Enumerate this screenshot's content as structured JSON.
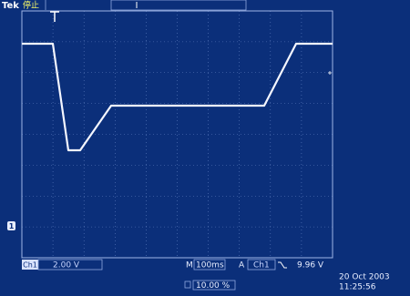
{
  "header": {
    "brand": "Tek",
    "status": "停止"
  },
  "markers": {
    "ground": "1"
  },
  "status_bar": {
    "channel": "Ch1",
    "scale": "2.00 V",
    "timebase_label": "M",
    "timebase": "100ms",
    "trigger_label": "A",
    "trigger_source": "Ch1",
    "trigger_level": "9.96 V"
  },
  "trigger_position": "10.00 %",
  "date": "20 Oct  2003",
  "time": "11:25:56"
}
